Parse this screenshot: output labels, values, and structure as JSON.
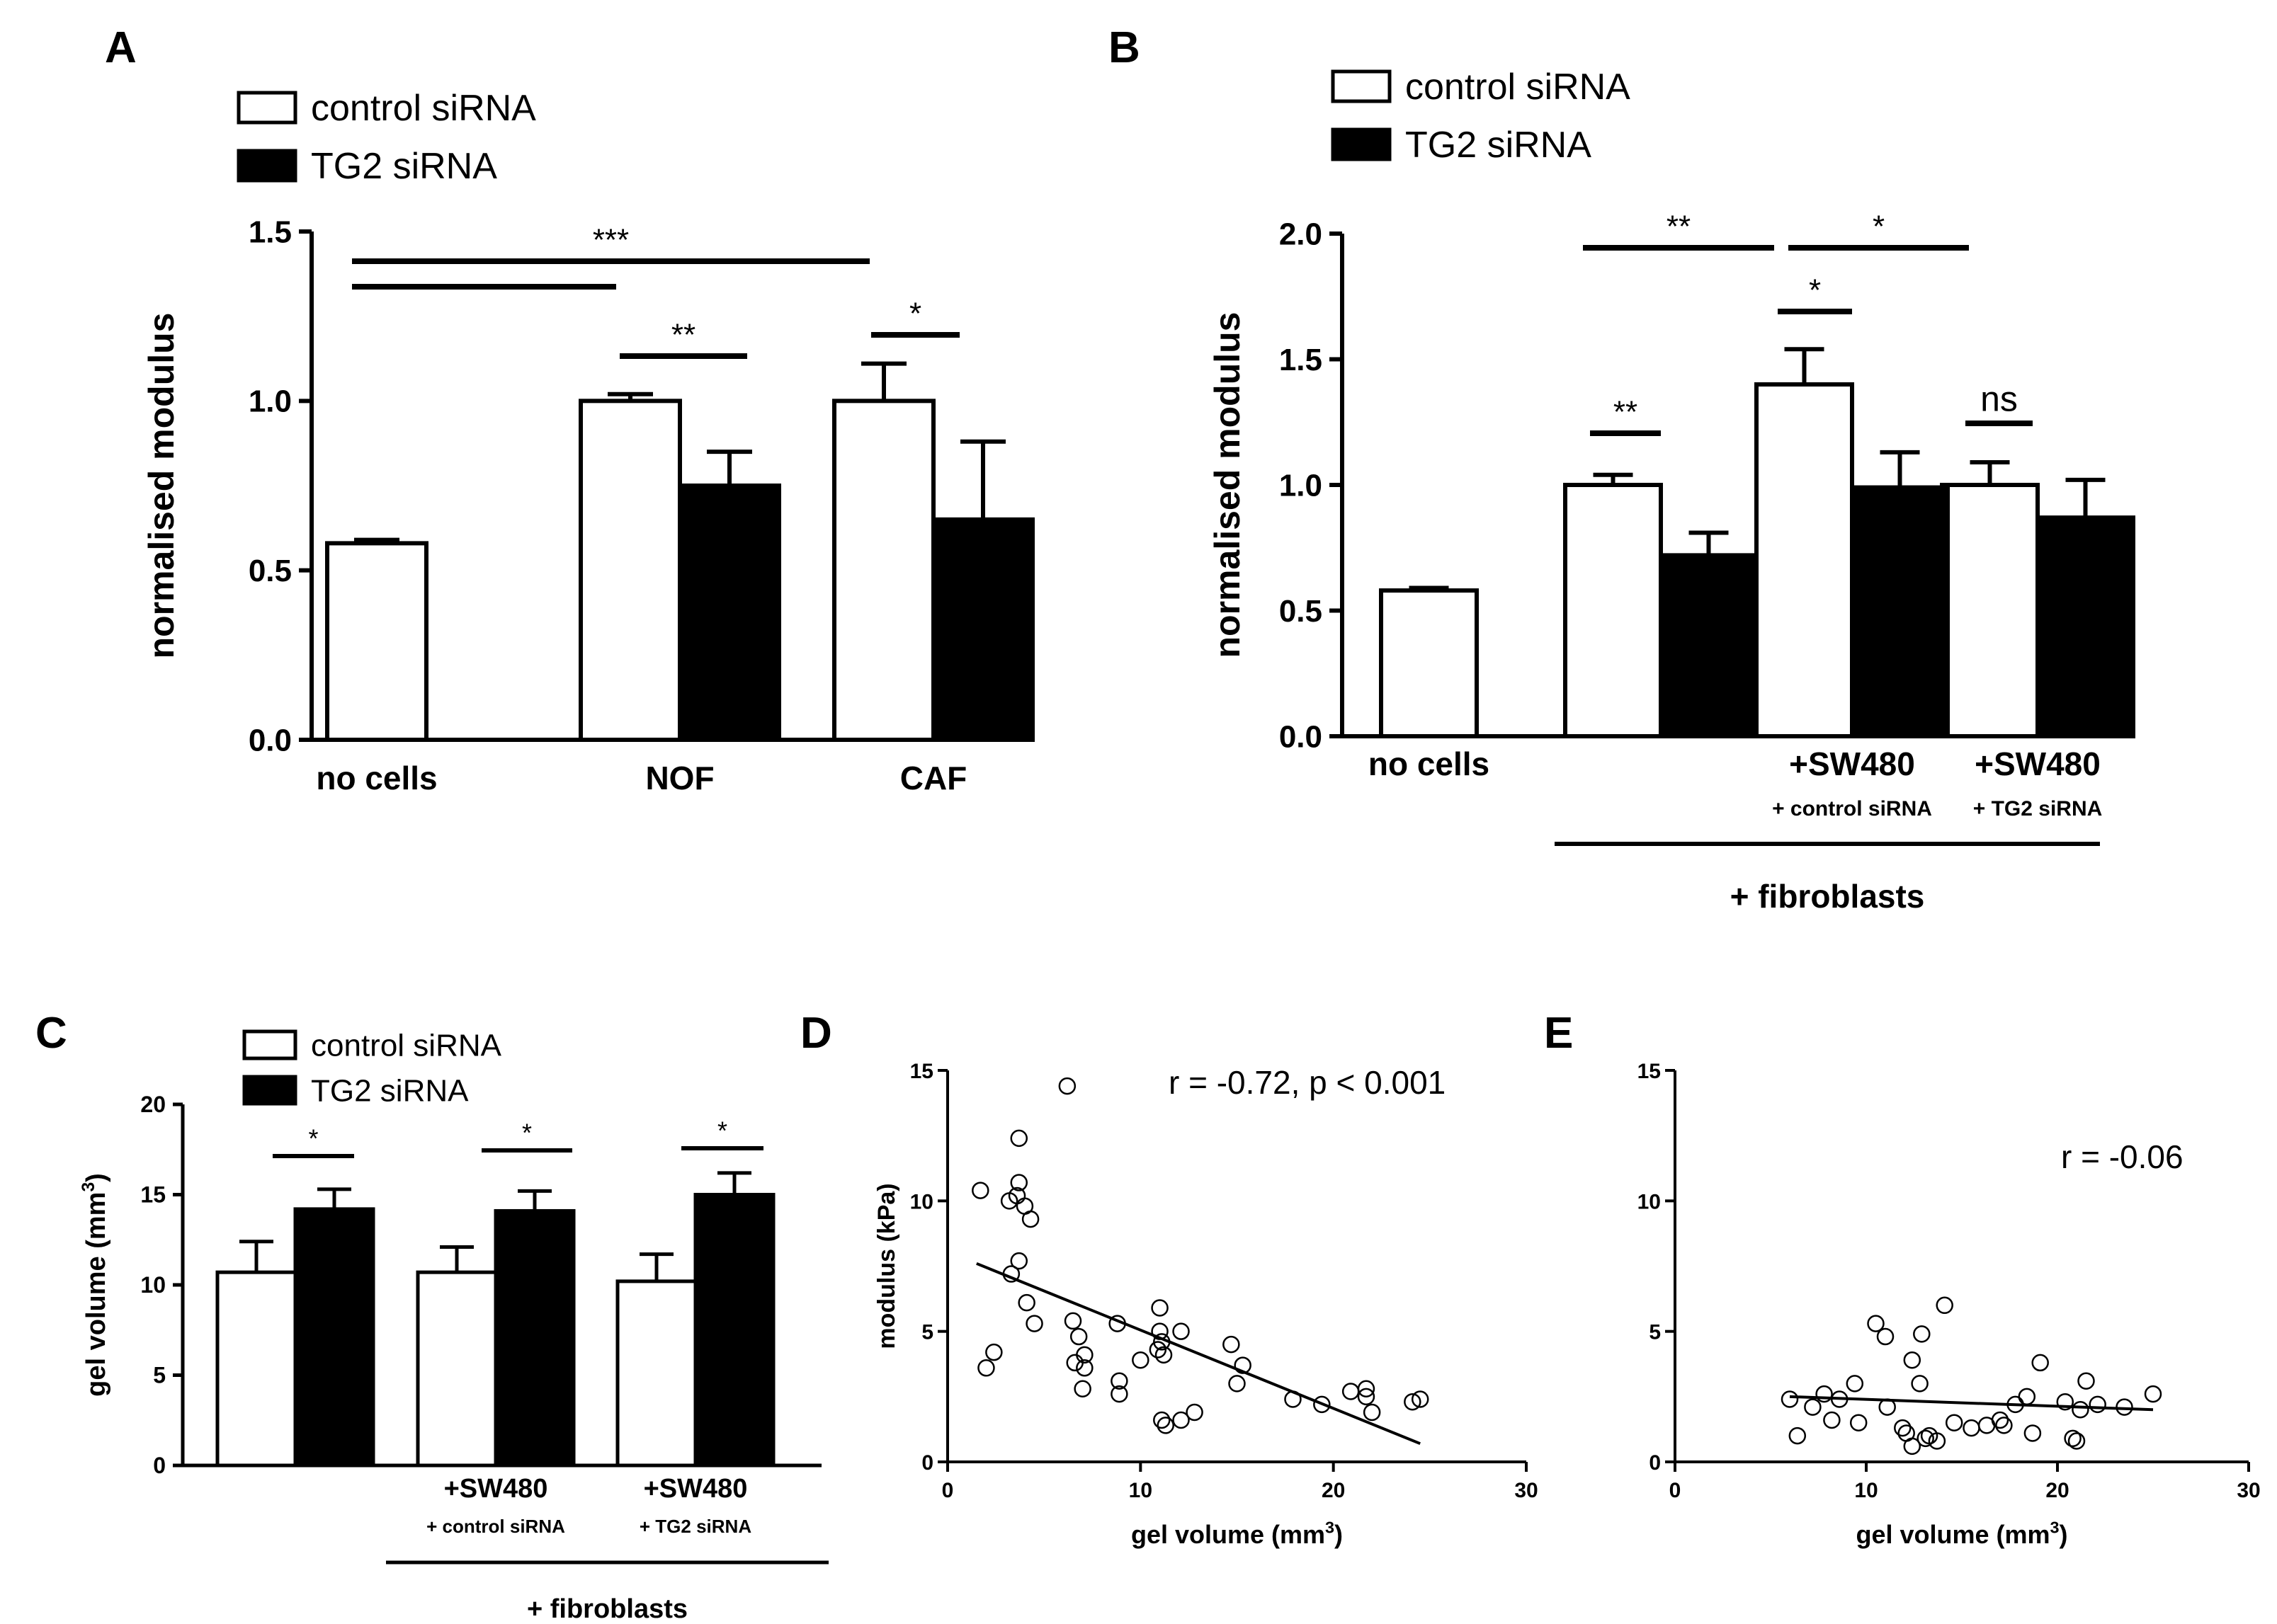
{
  "chart_data": [
    {
      "panel": "A",
      "type": "bar",
      "ylabel": "normalised modulus",
      "ylim": [
        0,
        1.5
      ],
      "yticks": [
        "0.0",
        "0.5",
        "1.0",
        "1.5"
      ],
      "legend": [
        "control siRNA",
        "TG2 siRNA"
      ],
      "categories": [
        "no cells",
        "NOF",
        "CAF"
      ],
      "series": [
        {
          "name": "control siRNA",
          "values": [
            0.58,
            1.0,
            1.0
          ],
          "errors": [
            0.01,
            0.02,
            0.11
          ]
        },
        {
          "name": "TG2 siRNA",
          "values": [
            null,
            0.75,
            0.65
          ],
          "errors": [
            null,
            0.1,
            0.23
          ]
        }
      ],
      "significance": [
        "***",
        "**",
        "*"
      ]
    },
    {
      "panel": "B",
      "type": "bar",
      "ylabel": "normalised modulus",
      "ylim": [
        0,
        2.0
      ],
      "yticks": [
        "0.0",
        "0.5",
        "1.0",
        "1.5",
        "2.0"
      ],
      "legend": [
        "control siRNA",
        "TG2 siRNA"
      ],
      "categories": [
        "no cells",
        "",
        "+SW480",
        "+SW480"
      ],
      "subcategories": [
        "",
        "",
        "+ control siRNA",
        "+ TG2 siRNA"
      ],
      "group_label": "+ fibroblasts",
      "series": [
        {
          "name": "control siRNA",
          "values": [
            0.58,
            1.0,
            1.4,
            1.0
          ],
          "errors": [
            0.01,
            0.04,
            0.14,
            0.09
          ]
        },
        {
          "name": "TG2 siRNA",
          "values": [
            null,
            0.72,
            0.99,
            0.87
          ],
          "errors": [
            null,
            0.09,
            0.14,
            0.15
          ]
        }
      ],
      "significance": [
        "**",
        "*",
        "*",
        "**",
        "ns"
      ]
    },
    {
      "panel": "C",
      "type": "bar",
      "ylabel": "gel volume (mm",
      "ylabel_sup": "3",
      "ylabel_end": ")",
      "ylim": [
        0,
        20
      ],
      "yticks": [
        "0",
        "5",
        "10",
        "15",
        "20"
      ],
      "legend": [
        "control siRNA",
        "TG2 siRNA"
      ],
      "categories": [
        "",
        "+SW480",
        "+SW480"
      ],
      "subcategories": [
        "",
        "+ control siRNA",
        "+ TG2 siRNA"
      ],
      "group_label": "+ fibroblasts",
      "series": [
        {
          "name": "control siRNA",
          "values": [
            10.7,
            10.7,
            10.2
          ],
          "errors": [
            1.7,
            1.4,
            1.5
          ]
        },
        {
          "name": "TG2 siRNA",
          "values": [
            14.2,
            14.1,
            15.0
          ],
          "errors": [
            1.1,
            1.1,
            1.2
          ]
        }
      ],
      "significance": [
        "*",
        "*",
        "*"
      ]
    },
    {
      "panel": "D",
      "type": "scatter",
      "xlabel": "gel volume (mm",
      "xlabel_sup": "3",
      "xlabel_end": ")",
      "ylabel": "modulus (kPa)",
      "xlim": [
        0,
        30
      ],
      "ylim": [
        0,
        15
      ],
      "xticks": [
        "0",
        "10",
        "20",
        "30"
      ],
      "yticks": [
        "0",
        "5",
        "10",
        "15"
      ],
      "annotation": "r = -0.72, p < 0.001",
      "fit": {
        "x": [
          1.5,
          24.5
        ],
        "y": [
          7.6,
          0.7
        ]
      },
      "points": [
        [
          6.2,
          14.4
        ],
        [
          3.7,
          12.4
        ],
        [
          1.7,
          10.4
        ],
        [
          3.2,
          10.0
        ],
        [
          3.6,
          10.2
        ],
        [
          3.7,
          10.7
        ],
        [
          4.0,
          9.8
        ],
        [
          4.3,
          9.3
        ],
        [
          3.7,
          7.7
        ],
        [
          3.3,
          7.2
        ],
        [
          4.1,
          6.1
        ],
        [
          4.5,
          5.3
        ],
        [
          2.0,
          3.6
        ],
        [
          2.4,
          4.2
        ],
        [
          6.5,
          5.4
        ],
        [
          6.8,
          4.8
        ],
        [
          6.6,
          3.8
        ],
        [
          7.1,
          4.1
        ],
        [
          7.1,
          3.6
        ],
        [
          7.0,
          2.8
        ],
        [
          8.8,
          5.3
        ],
        [
          8.9,
          3.1
        ],
        [
          8.9,
          2.6
        ],
        [
          10.0,
          3.9
        ],
        [
          11.0,
          5.9
        ],
        [
          11.0,
          5.0
        ],
        [
          11.1,
          4.6
        ],
        [
          11.2,
          4.1
        ],
        [
          10.9,
          4.3
        ],
        [
          12.1,
          5.0
        ],
        [
          11.1,
          1.6
        ],
        [
          11.3,
          1.4
        ],
        [
          12.1,
          1.6
        ],
        [
          12.8,
          1.9
        ],
        [
          14.7,
          4.5
        ],
        [
          15.0,
          3.0
        ],
        [
          15.3,
          3.7
        ],
        [
          17.9,
          2.4
        ],
        [
          19.4,
          2.2
        ],
        [
          20.9,
          2.7
        ],
        [
          21.7,
          2.8
        ],
        [
          21.7,
          2.5
        ],
        [
          22.0,
          1.9
        ],
        [
          24.1,
          2.3
        ],
        [
          24.5,
          2.4
        ]
      ]
    },
    {
      "panel": "E",
      "type": "scatter",
      "xlabel": "gel volume (mm",
      "xlabel_sup": "3",
      "xlabel_end": ")",
      "ylabel": "",
      "xlim": [
        0,
        30
      ],
      "ylim": [
        0,
        15
      ],
      "xticks": [
        "0",
        "10",
        "20",
        "30"
      ],
      "yticks": [
        "0",
        "5",
        "10",
        "15"
      ],
      "annotation": "r = -0.06",
      "fit": {
        "x": [
          6.0,
          25.0
        ],
        "y": [
          2.5,
          2.0
        ]
      },
      "points": [
        [
          6.0,
          2.4
        ],
        [
          6.4,
          1.0
        ],
        [
          7.2,
          2.1
        ],
        [
          7.8,
          2.6
        ],
        [
          8.2,
          1.6
        ],
        [
          8.6,
          2.4
        ],
        [
          9.4,
          3.0
        ],
        [
          9.6,
          1.5
        ],
        [
          10.5,
          5.3
        ],
        [
          11.0,
          4.8
        ],
        [
          11.1,
          2.1
        ],
        [
          11.9,
          1.3
        ],
        [
          12.1,
          1.1
        ],
        [
          12.4,
          3.9
        ],
        [
          12.4,
          0.6
        ],
        [
          12.8,
          3.0
        ],
        [
          12.9,
          4.9
        ],
        [
          13.1,
          0.9
        ],
        [
          13.3,
          1.0
        ],
        [
          13.7,
          0.8
        ],
        [
          14.1,
          6.0
        ],
        [
          14.6,
          1.5
        ],
        [
          15.5,
          1.3
        ],
        [
          16.3,
          1.4
        ],
        [
          17.0,
          1.6
        ],
        [
          17.2,
          1.4
        ],
        [
          17.8,
          2.2
        ],
        [
          18.4,
          2.5
        ],
        [
          18.7,
          1.1
        ],
        [
          19.1,
          3.8
        ],
        [
          20.4,
          2.3
        ],
        [
          20.8,
          0.9
        ],
        [
          21.0,
          0.8
        ],
        [
          21.2,
          2.0
        ],
        [
          21.5,
          3.1
        ],
        [
          22.1,
          2.2
        ],
        [
          23.5,
          2.1
        ],
        [
          25.0,
          2.6
        ]
      ]
    }
  ]
}
